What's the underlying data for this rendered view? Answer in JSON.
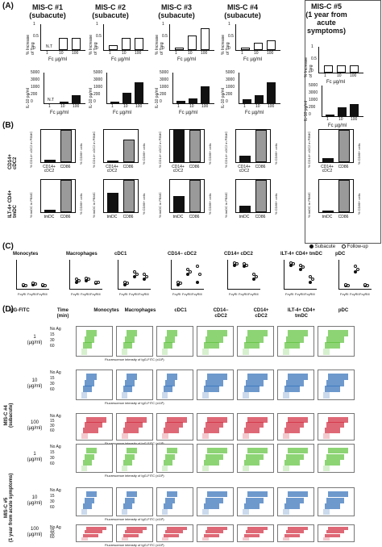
{
  "panelA": {
    "label": "(A)",
    "cols": [
      {
        "title": "MIS-C #1\n(subacute)"
      },
      {
        "title": "MIS-C #2\n(subacute)"
      },
      {
        "title": "MIS-C #3\n(subacute)"
      },
      {
        "title": "MIS-C #4\n(subacute)"
      },
      {
        "title": "MIS-C #5\n(1 year from\nacute\nsymptoms)"
      }
    ],
    "treg_ylabel": "% Increase\nof Treg",
    "il10_ylabel": "IL-10 pg/ml",
    "xlabel": "Fc µg/ml",
    "xticks": [
      "1",
      "10",
      "100"
    ],
    "nt": "N.T",
    "treg_yticks": [
      "1",
      "0.5",
      "0"
    ],
    "il10_yticks": [
      "5000",
      "4000",
      "3000",
      "2000",
      "1000",
      "900",
      "200",
      "100",
      "0"
    ]
  },
  "panelB": {
    "label": "(B)",
    "row1_label": "CD14+\ncDC2",
    "row2_label": "ILT-4+ CD4+\ntmDC",
    "row1_cats": [
      "CD14+\ncDC2",
      "CD86"
    ],
    "row2_cats": [
      "tmDC",
      "CD86"
    ],
    "left_ylabel_r1": "% CD14+ cDC2 in PBMC",
    "left_ylabel_r2": "% tmDC in PBMC",
    "right_ylabel": "% CD86+ cells"
  },
  "panelC": {
    "label": "(C)",
    "titles": [
      "Monocytes",
      "Macrophages",
      "cDC1",
      "CD14− cDC2",
      "CD14+ cDC2",
      "ILT-4+ CD4+ tmDC",
      "pDC"
    ],
    "xticks": [
      "FcγRI",
      "FcγRII",
      "FcγRIII"
    ],
    "legend": [
      "Subacute",
      "Follow-up"
    ]
  },
  "panelD": {
    "label": "(D)",
    "head": [
      "IgG-FITC",
      "Time\n(min)",
      "Monocytes",
      "Macrophages",
      "cDC1",
      "CD14−\ncDC2",
      "CD14+\ncDC2",
      "ILT-4+ CD4+\ntmDC",
      "pDC"
    ],
    "patient4": "MIS-C #4\n(subacute)",
    "patient5": "MIS-C #5\n(1 year from acute symptoms)",
    "doses": [
      "1\n(µg/ml)",
      "10\n(µg/ml)",
      "100\n(µg/ml)"
    ],
    "times": [
      "No Ag",
      "15",
      "30",
      "60"
    ],
    "xaxis": "Fluorescence intensity of IgG-FITC (x10³)",
    "colors": {
      "green": "#5cc23a",
      "blue": "#2f6db8",
      "red": "#d2283c"
    }
  },
  "chart_data": [
    {
      "type": "bar",
      "title": "MIS-C #1 (subacute)",
      "categories": [
        "1",
        "10",
        "100"
      ],
      "series": [
        {
          "name": "% Increase of Treg",
          "values": [
            null,
            0.5,
            0.5
          ]
        },
        {
          "name": "IL-10 pg/ml",
          "values": [
            null,
            150,
            600
          ]
        }
      ]
    },
    {
      "type": "bar",
      "title": "MIS-C #2 (subacute)",
      "categories": [
        "1",
        "10",
        "100"
      ],
      "series": [
        {
          "name": "% Increase of Treg",
          "values": [
            0.2,
            0.5,
            0.5
          ]
        },
        {
          "name": "IL-10 pg/ml",
          "values": [
            100,
            800,
            3000
          ]
        }
      ]
    },
    {
      "type": "bar",
      "title": "MIS-C #3 (subacute)",
      "categories": [
        "1",
        "10",
        "100"
      ],
      "series": [
        {
          "name": "% Increase of Treg",
          "values": [
            0.1,
            0.6,
            0.9
          ]
        },
        {
          "name": "IL-10 pg/ml",
          "values": [
            200,
            400,
            2000
          ]
        }
      ]
    },
    {
      "type": "bar",
      "title": "MIS-C #4 (subacute)",
      "categories": [
        "1",
        "10",
        "100"
      ],
      "series": [
        {
          "name": "% Increase of Treg",
          "values": [
            0.1,
            0.3,
            0.4
          ]
        },
        {
          "name": "IL-10 pg/ml",
          "values": [
            300,
            600,
            3000
          ]
        }
      ]
    },
    {
      "type": "bar",
      "title": "MIS-C #5 (1 year from acute symptoms)",
      "categories": [
        "1",
        "10",
        "100"
      ],
      "series": [
        {
          "name": "% Increase of Treg",
          "values": [
            0.3,
            0.3,
            0.3
          ]
        },
        {
          "name": "IL-10 pg/ml",
          "values": [
            100,
            700,
            900
          ]
        }
      ]
    }
  ]
}
